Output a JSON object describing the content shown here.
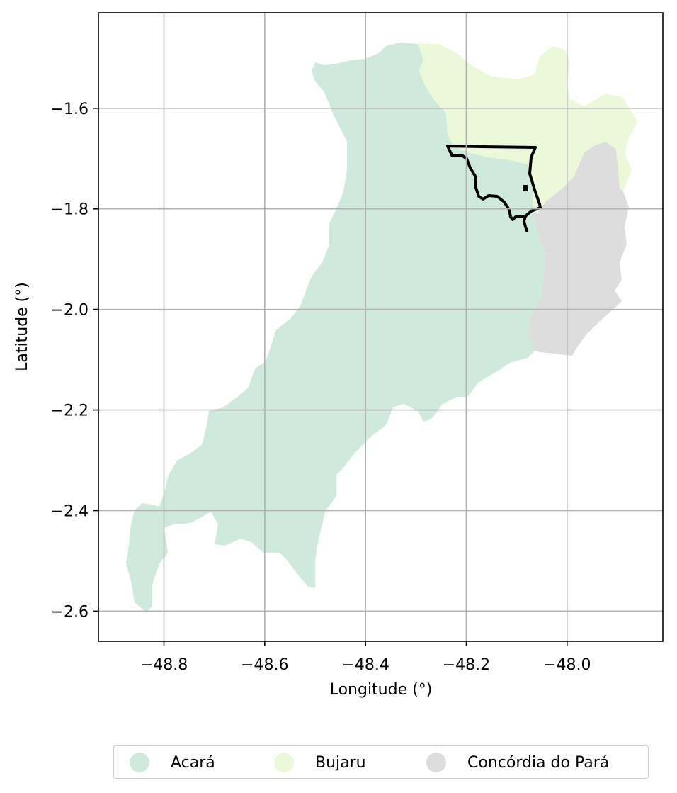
{
  "map": {
    "xlabel": "Longitude (°)",
    "ylabel": "Latitude (°)",
    "grid": true,
    "xlim": [
      -48.93,
      -47.81
    ],
    "ylim": [
      -2.66,
      -1.41
    ],
    "x_ticks": [
      "−48.8",
      "−48.6",
      "−48.4",
      "−48.2",
      "−48.0"
    ],
    "y_ticks": [
      "−1.6",
      "−1.8",
      "−2.0",
      "−2.2",
      "−2.4",
      "−2.6"
    ],
    "regions": [
      {
        "name": "Acará",
        "color": "#cfeadd"
      },
      {
        "name": "Bujaru",
        "color": "#ecf8da"
      },
      {
        "name": "Concórdia do Pará",
        "color": "#dddddd"
      }
    ],
    "highlight_outline": {
      "color": "#000000"
    }
  },
  "legend": {
    "placement": "bottom-center",
    "items": [
      {
        "label": "Acará",
        "color": "#cfeadd"
      },
      {
        "label": "Bujaru",
        "color": "#ecf8da"
      },
      {
        "label": "Concórdia do Pará",
        "color": "#dddddd"
      }
    ]
  }
}
